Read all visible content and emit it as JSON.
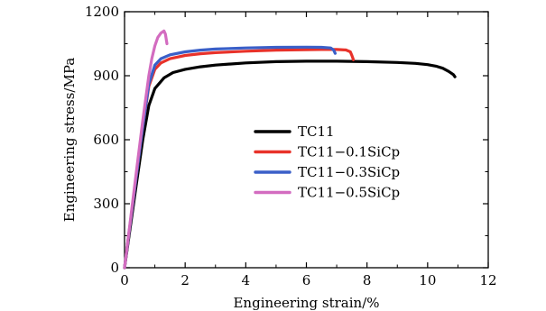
{
  "chart_data": {
    "type": "line",
    "title": "",
    "xlabel": "Engineering strain/%",
    "ylabel": "Engineering stress/MPa",
    "xlim": [
      0,
      12
    ],
    "ylim": [
      0,
      1200
    ],
    "xticks": [
      0,
      2,
      4,
      6,
      8,
      10,
      12
    ],
    "yticks": [
      0,
      300,
      600,
      900,
      1200
    ],
    "x_tick_labels": [
      "0",
      "2",
      "4",
      "6",
      "8",
      "10",
      "12"
    ],
    "y_tick_labels": [
      "0",
      "300",
      "600",
      "900",
      "1200"
    ],
    "grid": false,
    "legend_position": "center",
    "series": [
      {
        "name": "TC11",
        "color": "#000000",
        "x": [
          0,
          0.2,
          0.4,
          0.6,
          0.8,
          1.0,
          1.3,
          1.6,
          2.0,
          2.5,
          3.0,
          4.0,
          5.0,
          6.0,
          7.0,
          8.0,
          9.0,
          9.6,
          10.0,
          10.3,
          10.5,
          10.7,
          10.85,
          10.9
        ],
        "y": [
          0,
          200,
          400,
          600,
          760,
          840,
          890,
          915,
          930,
          942,
          950,
          960,
          966,
          968,
          968,
          966,
          962,
          958,
          952,
          944,
          935,
          920,
          905,
          895
        ]
      },
      {
        "name": "TC11−0.1SiCp",
        "color": "#e8322a",
        "x": [
          0,
          0.2,
          0.4,
          0.6,
          0.8,
          1.0,
          1.2,
          1.5,
          2.0,
          2.5,
          3.0,
          4.0,
          5.0,
          6.0,
          6.5,
          7.0,
          7.3,
          7.45,
          7.5,
          7.55
        ],
        "y": [
          0,
          220,
          440,
          660,
          850,
          930,
          960,
          980,
          995,
          1003,
          1008,
          1015,
          1020,
          1022,
          1023,
          1023,
          1021,
          1012,
          995,
          975
        ]
      },
      {
        "name": "TC11−0.3SiCp",
        "color": "#3a5fc8",
        "x": [
          0,
          0.2,
          0.4,
          0.6,
          0.8,
          1.0,
          1.2,
          1.5,
          2.0,
          2.5,
          3.0,
          4.0,
          5.0,
          6.0,
          6.5,
          6.8,
          6.9,
          6.95
        ],
        "y": [
          0,
          220,
          440,
          660,
          860,
          950,
          980,
          998,
          1012,
          1020,
          1025,
          1030,
          1033,
          1034,
          1033,
          1030,
          1020,
          1005
        ]
      },
      {
        "name": "TC11−0.5SiCp",
        "color": "#d36cc0",
        "x": [
          0,
          0.2,
          0.4,
          0.6,
          0.8,
          0.9,
          1.0,
          1.1,
          1.2,
          1.3,
          1.35,
          1.4
        ],
        "y": [
          0,
          230,
          460,
          690,
          900,
          980,
          1040,
          1080,
          1100,
          1110,
          1095,
          1050
        ]
      }
    ]
  }
}
